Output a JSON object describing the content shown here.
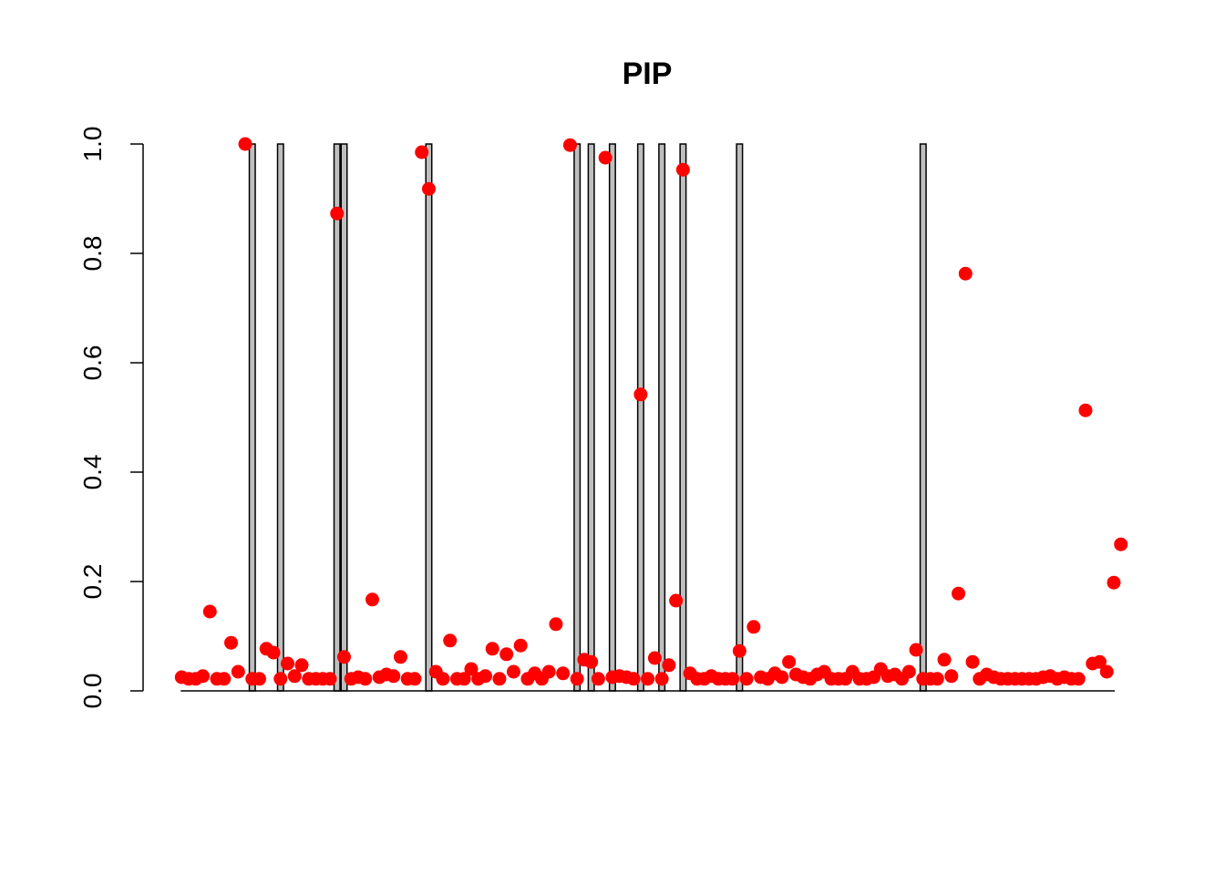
{
  "chart_data": {
    "type": "bar",
    "title": "PIP",
    "xlabel": "",
    "ylabel": "",
    "ylim": [
      0,
      1
    ],
    "yticks": [
      "0.0",
      "0.2",
      "0.4",
      "0.6",
      "0.8",
      "1.0"
    ],
    "n": 133,
    "bar_color": "#bebebe",
    "point_color": "#ff0000",
    "bars": {
      "name": "",
      "indices": [
        10,
        14,
        22,
        23,
        35,
        56,
        58,
        61,
        65,
        68,
        71,
        79,
        105
      ],
      "value": 1.0
    },
    "points": {
      "name": "",
      "values": [
        0.025,
        0.022,
        0.022,
        0.027,
        0.145,
        0.022,
        0.022,
        0.088,
        0.035,
        1.0,
        0.022,
        0.022,
        0.077,
        0.07,
        0.022,
        0.05,
        0.027,
        0.047,
        0.022,
        0.022,
        0.022,
        0.022,
        0.873,
        0.062,
        0.022,
        0.025,
        0.022,
        0.167,
        0.025,
        0.03,
        0.027,
        0.062,
        0.022,
        0.022,
        0.985,
        0.918,
        0.035,
        0.022,
        0.092,
        0.022,
        0.022,
        0.04,
        0.022,
        0.027,
        0.077,
        0.022,
        0.067,
        0.035,
        0.083,
        0.022,
        0.032,
        0.022,
        0.035,
        0.122,
        0.032,
        0.998,
        0.022,
        0.057,
        0.053,
        0.022,
        0.975,
        0.025,
        0.027,
        0.025,
        0.022,
        0.542,
        0.022,
        0.06,
        0.022,
        0.047,
        0.165,
        0.953,
        0.032,
        0.022,
        0.022,
        0.027,
        0.022,
        0.022,
        0.022,
        0.073,
        0.022,
        0.117,
        0.025,
        0.022,
        0.032,
        0.025,
        0.053,
        0.03,
        0.025,
        0.022,
        0.03,
        0.035,
        0.022,
        0.022,
        0.022,
        0.035,
        0.022,
        0.022,
        0.025,
        0.04,
        0.027,
        0.03,
        0.022,
        0.035,
        0.075,
        0.022,
        0.022,
        0.022,
        0.057,
        0.027,
        0.178,
        0.763,
        0.053,
        0.022,
        0.03,
        0.025,
        0.022,
        0.022,
        0.022,
        0.022,
        0.022,
        0.022,
        0.025,
        0.027,
        0.022,
        0.025,
        0.022,
        0.022,
        0.513,
        0.05,
        0.053,
        0.035,
        0.198,
        0.268
      ]
    }
  }
}
